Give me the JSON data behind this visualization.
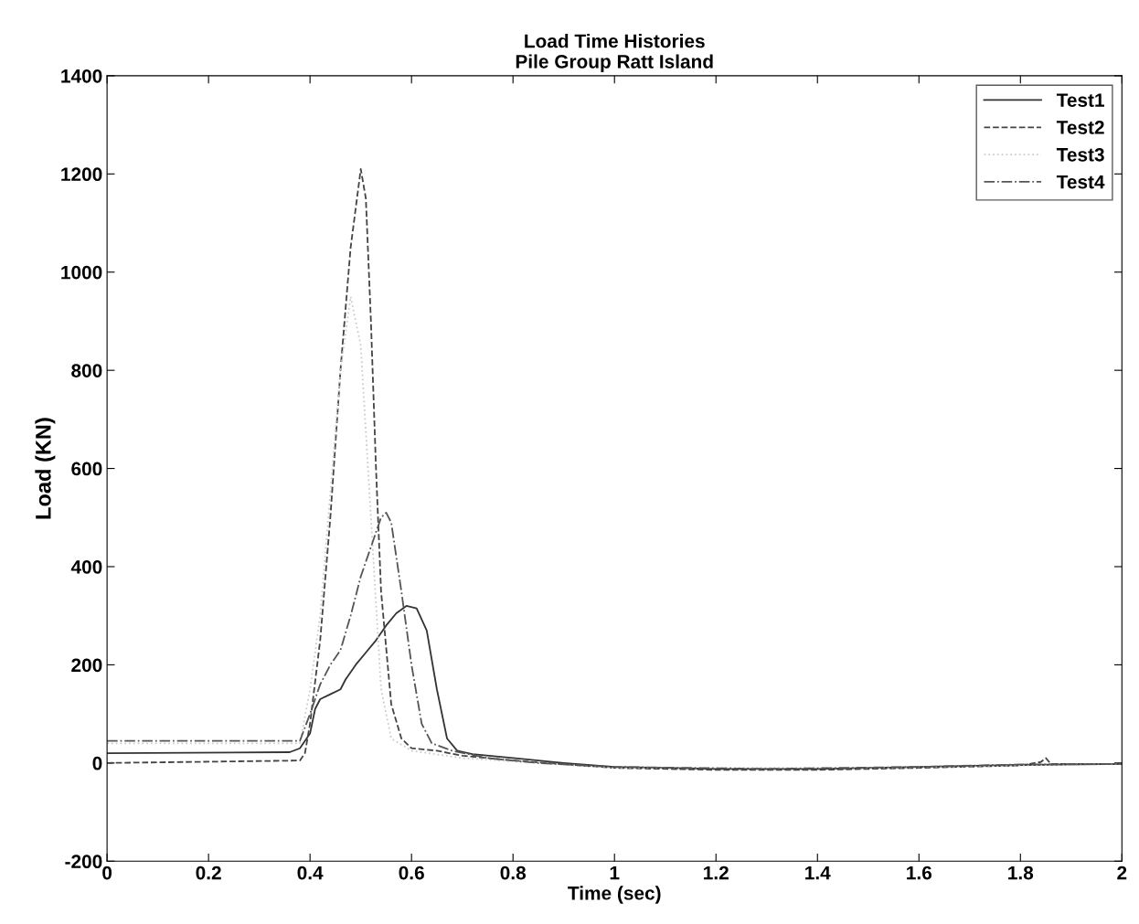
{
  "chart_data": {
    "type": "line",
    "title": "Load Time Histories\nPile Group Ratt Island",
    "xlabel": "Time (sec)",
    "ylabel": "Load (KN)",
    "xlim": [
      0,
      2
    ],
    "ylim": [
      -200,
      1400
    ],
    "xticks": [
      0,
      0.2,
      0.4,
      0.6,
      0.8,
      1,
      1.2,
      1.4,
      1.6,
      1.8,
      2
    ],
    "yticks": [
      -200,
      0,
      200,
      400,
      600,
      800,
      1000,
      1200,
      1400
    ],
    "grid": false,
    "legend": "top right",
    "marker": "none",
    "series": [
      {
        "name": "Test1",
        "color": "#333333",
        "line_style": "solid",
        "x": [
          0,
          0.36,
          0.38,
          0.4,
          0.41,
          0.42,
          0.44,
          0.46,
          0.47,
          0.49,
          0.51,
          0.53,
          0.55,
          0.57,
          0.59,
          0.61,
          0.63,
          0.65,
          0.67,
          0.69,
          0.72,
          0.8,
          0.9,
          1.0,
          1.2,
          1.4,
          1.6,
          1.8,
          2.0
        ],
        "values": [
          20,
          22,
          30,
          60,
          110,
          130,
          140,
          150,
          170,
          200,
          225,
          250,
          280,
          305,
          320,
          315,
          270,
          150,
          50,
          25,
          18,
          10,
          0,
          -8,
          -12,
          -12,
          -8,
          -4,
          -2
        ]
      },
      {
        "name": "Test2",
        "color": "#444444",
        "line_style": "dashed",
        "x": [
          0,
          0.38,
          0.39,
          0.4,
          0.42,
          0.44,
          0.46,
          0.48,
          0.5,
          0.51,
          0.52,
          0.53,
          0.54,
          0.56,
          0.58,
          0.6,
          0.65,
          0.7,
          0.8,
          1.0,
          1.2,
          1.4,
          1.6,
          1.8,
          1.84,
          1.85,
          1.86,
          2.0
        ],
        "values": [
          0,
          5,
          20,
          80,
          250,
          500,
          800,
          1050,
          1210,
          1150,
          900,
          600,
          350,
          120,
          50,
          30,
          25,
          15,
          5,
          -10,
          -14,
          -14,
          -10,
          -5,
          2,
          10,
          -2,
          -2
        ]
      },
      {
        "name": "Test3",
        "color": "#cccccc",
        "line_style": "dotted",
        "x": [
          0,
          0.38,
          0.4,
          0.42,
          0.44,
          0.46,
          0.48,
          0.5,
          0.52,
          0.54,
          0.56,
          0.6,
          0.7,
          1.0,
          1.5,
          2.0
        ],
        "values": [
          40,
          40,
          150,
          300,
          550,
          800,
          950,
          850,
          500,
          150,
          50,
          25,
          10,
          -10,
          -10,
          -2
        ]
      },
      {
        "name": "Test4",
        "color": "#555555",
        "line_style": "dashdot",
        "x": [
          0,
          0.38,
          0.4,
          0.42,
          0.44,
          0.46,
          0.48,
          0.5,
          0.52,
          0.54,
          0.55,
          0.56,
          0.58,
          0.6,
          0.62,
          0.64,
          0.68,
          0.75,
          0.85,
          1.0,
          1.3,
          1.6,
          1.8,
          2.0
        ],
        "values": [
          45,
          45,
          100,
          160,
          200,
          230,
          300,
          380,
          440,
          500,
          510,
          490,
          350,
          200,
          80,
          40,
          25,
          10,
          0,
          -8,
          -12,
          -8,
          -3,
          -2
        ]
      }
    ]
  }
}
